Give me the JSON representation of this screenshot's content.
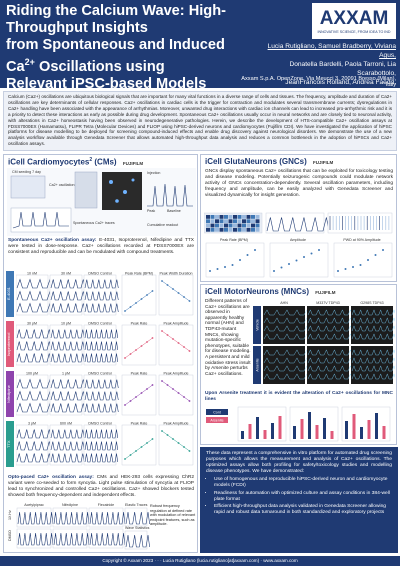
{
  "header": {
    "title_line1": "Riding the Calcium Wave: High-Throughput Insights",
    "title_line2": "from Spontaneous and Induced",
    "title_line3_pre": "Ca",
    "title_line3_sup": "2+",
    "title_line3_post": " Oscillations using",
    "title_line4": "Relevant iPSC-based Models",
    "logo_text": "AXXAM",
    "logo_sub": "INNOVATIVE SCIENCE, FROM IDEA TO IND",
    "authors": [
      "Lucia Rutigliano, Samuel Bradberry, Viviana Agus,",
      "Donatella Bardelli, Paola Tarroni, Lia Scarabottolo,",
      "JeanFrancois Rolland, Andrea Faedo,",
      "Cinzia Nucci, Silvia Cainarca"
    ],
    "affiliation": "Axxam S.p.A. OpenZone, Via Meucci 3, 20091 Bresso (Milan), Italy"
  },
  "abstract": "Calcium (Ca2+) oscillations are ubiquitous biological signals that are important for many vital functions in a diverse range of cells and tissues. The frequency, amplitude and duration of Ca2+ oscillations are key determinants of cellular responses. Ca2+ oscillations in cardiac cells is the trigger for contraction and modulates several transmembrane currents; dysregulations in Ca2+ handling have been associated with the appearance of arrhythmias. Moreover, unwanted drug interactions with cardiac ion channels can lead to increased pro-arrhythmic risk and it is a priority to detect these interactions as early as possible during drug development. Spontaneous Ca2+ oscillations usually occur in neural networks and are closely tied to neuronal activity, with alterations in Ca2+ homeostasis having been observed in neurodegenerative pathologies. Herein, we describe the development of HTS-compatible Ca2+ oscillation assays at FDSS7000EX (Hamamatsu), FLIPR Tetra (Molecular Devices) and FLIOP using hiPSC-derived neurons and cardiomyocytes (Fujifilm CDI). We have investigated the application of hiPSC platforms for disease modelling to be deployed for screening compound-induced effects and enable drug discovery against neurological disorders. We demonstrate the use of a new analysis workflow available through Genedata Screener that allows automated high-throughput data analysis and reduces a common bottleneck in the adoption of hiPSCs and Ca2+ oscillation assays.",
  "cardio": {
    "title_pre": "iCell Cardiomyocytes",
    "title_sup": "2",
    "title_post": " (CMs)",
    "fujifilm": "FUJIFILM",
    "diagram_labels": [
      "CM seeding 7 day",
      "Ca2+ oscillation recording",
      "Injection",
      "Peak",
      "Baseline",
      "Cumulative readout",
      "Spontaneous Ca2+ traces"
    ],
    "assay_heading": "Spontaneous Ca2+ oscillation assay:",
    "assay_text": "E-4031, Isoproterenol, Nifedipine and TTX were tested in dose-response. Ca2+ oscillations recorded at FDSS7000EX are consistent and reproducible and can be modulated with compound treatments.",
    "rows": [
      {
        "name": "E-4031",
        "doses": [
          "10 nM",
          "30 nM",
          "DMSO Control"
        ],
        "plot1": "Peak Rate (BPM)",
        "plot2": "Peak Width Duration"
      },
      {
        "name": "Isoproterenol",
        "doses": [
          "30 pM",
          "10 pM",
          "DMSO Control"
        ],
        "plot1": "Peak Rate",
        "plot2": "Peak Amplitude"
      },
      {
        "name": "Nifedipine",
        "doses": [
          "100 pM",
          "1 pM",
          "DMSO Control"
        ],
        "plot1": "Peak Rate",
        "plot2": "Peak Amplitude"
      },
      {
        "name": "TTX",
        "doses": [
          "3 pM",
          "600 nM",
          "DMSO Control"
        ],
        "plot1": "Peak Rate",
        "plot2": "Peak Amplitude"
      }
    ],
    "opto_heading": "Opto-paced Ca2+ oscillation assay:",
    "opto_text": "CMs and HEK-293 cells expressing ChR2 variant were co-seeded to form syncytia. Light pulse stimulation of syncytia at FLIOP lead to synchronized and controlled Ca2+ oscillations. Ca2+ showed blockers tested showed both frequency-dependent and independent effects.",
    "opto_cols": [
      "Acetylpiprac",
      "Nifedipine",
      "Flecainide"
    ],
    "opto_rows": [
      "1X Hz",
      "DMSO"
    ],
    "opto_small": [
      "Elastic Traces",
      "Wave Statistics"
    ],
    "opto_note": "Robust frequency regulation at defined rate with modulation of relevant endpoint features, such as amplitude."
  },
  "gluta": {
    "title": "iCell GlutaNeurons (GNCs)",
    "fujifilm": "FUJIFILM",
    "text": "GNCs display spontaneous Ca2+ oscillations that can be exploited for toxicology testing and disease modeling. Potentially seizurogenic compounds could modulate network activity of GNCs concentration-dependently. Several oscillation parameters, including frequency and amplitude, can be easily analyzed with Genedata Screener and visualized dynamically for insight generation.",
    "plot_labels": [
      "Peak Rate (BPM)",
      "Amplitude",
      "PWD at 90% Amplitude"
    ]
  },
  "moto": {
    "title": "iCell MotorNeurons (MNCs)",
    "fujifilm": "FUJIFILM",
    "text": "Different patterns of Ca2+ oscillations are observed in apparently healthy normal (AHN) and TDP43-mutant MNCs, showing mutation-specific phenotypes, suitable for disease modeling. A persistent and mild oxidative stress insult by Arsenite perturbs Ca2+ oscillations.",
    "image_labels": [
      "AHN",
      "M337V TDP43",
      "G298S TDP43"
    ],
    "side_labels": [
      "Vehicle",
      "Arsenite"
    ],
    "arsenite_text": "Upon Arsenite treatment it is evident the alteration of Ca2+ oscillations for MNC lines",
    "legend": [
      "Cont",
      "Arsenite"
    ]
  },
  "conclusion": {
    "intro": "These data represent a comprehensive in vitro platform for automated drug screening purposes which allows the measurement and analysis of Ca2+ oscillations. The optimized assays allow both profiling for safety/toxicology studies and modelling disease phenotypes. We have demonstrated:",
    "bullets": [
      "Use of homogenous and reproducible hiPSC-derived neuron and cardiomyocyte models (FCDI)",
      "Readiness for automation with optimized culture and assay conditions in 384-well plate format",
      "Efficient high-throughput data analysis validated in Genedata Screener allowing rapid and robust data turnaround in both standardized and exploratory projects"
    ]
  },
  "footer": "Copyright © Axxam 2023 · · · Lucia Rutigliano (lucia.rutigliano[at]axxam.com) · www.axxam.com",
  "colors": {
    "brand": "#1f3a73",
    "accent": "#3f78b5",
    "panel_bg": "#eef1f7"
  }
}
